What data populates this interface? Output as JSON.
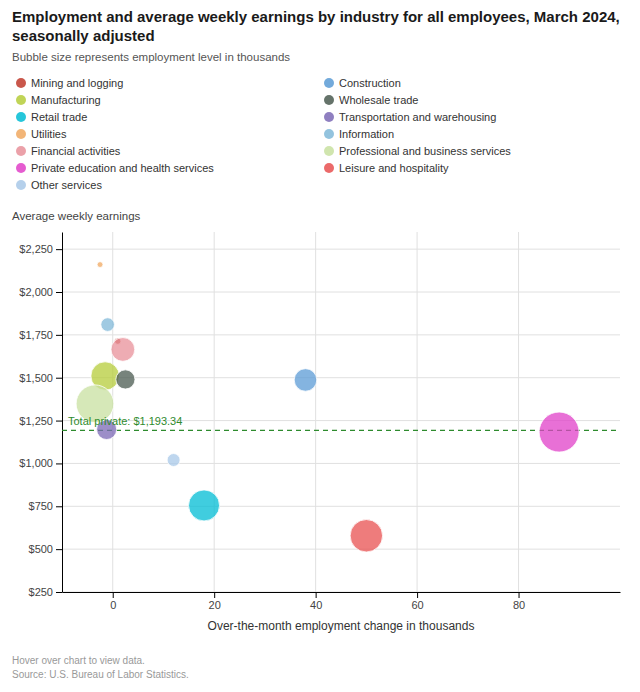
{
  "chart_data": {
    "type": "bubble",
    "title": "Employment and average weekly earnings by industry for all employees, March 2024, seasonally adjusted",
    "subtitle": "Bubble size represents employment level in thousands",
    "x_label": "Over-the-month employment change in thousands",
    "y_label": "Average weekly earnings",
    "xlim": [
      -10,
      100
    ],
    "ylim": [
      250,
      2350
    ],
    "xticks": [
      0,
      20,
      40,
      60,
      80
    ],
    "yticks": [
      {
        "value": 250,
        "label": "$250"
      },
      {
        "value": 500,
        "label": "$500"
      },
      {
        "value": 750,
        "label": "$750"
      },
      {
        "value": 1000,
        "label": "$1,000"
      },
      {
        "value": 1250,
        "label": "$1,250"
      },
      {
        "value": 1500,
        "label": "$1,500"
      },
      {
        "value": 1750,
        "label": "$1,750"
      },
      {
        "value": 2000,
        "label": "$2,000"
      },
      {
        "value": 2250,
        "label": "$2,250"
      }
    ],
    "grid": true,
    "annotations": [
      {
        "text": "Total private: $1,193.34",
        "y": 1193.34,
        "color": "#2e8b2e"
      }
    ],
    "source": [
      "Hover over chart to view data.",
      "Source: U.S. Bureau of Labor Statistics."
    ],
    "series": [
      {
        "name": "Mining and logging",
        "color": "#c0392b",
        "x": [
          1.0
        ],
        "values": [
          1713
        ],
        "sizes": [
          630
        ]
      },
      {
        "name": "Construction",
        "color": "#5b9bd5",
        "x": [
          38.0
        ],
        "values": [
          1487
        ],
        "sizes": [
          8200
        ]
      },
      {
        "name": "Manufacturing",
        "color": "#b5cc3a",
        "x": [
          -1.5
        ],
        "values": [
          1510
        ],
        "sizes": [
          13000
        ]
      },
      {
        "name": "Wholesale trade",
        "color": "#4a5a50",
        "x": [
          2.5
        ],
        "values": [
          1490
        ],
        "sizes": [
          5900
        ]
      },
      {
        "name": "Retail trade",
        "color": "#00bcd4",
        "x": [
          18.0
        ],
        "values": [
          755
        ],
        "sizes": [
          15500
        ]
      },
      {
        "name": "Transportation and warehousing",
        "color": "#7b68b5",
        "x": [
          -1.2
        ],
        "values": [
          1198
        ],
        "sizes": [
          6500
        ]
      },
      {
        "name": "Utilities",
        "color": "#f0a860",
        "x": [
          -2.5
        ],
        "values": [
          2160
        ],
        "sizes": [
          550
        ]
      },
      {
        "name": "Information",
        "color": "#80b8d8",
        "x": [
          -1.0
        ],
        "values": [
          1810
        ],
        "sizes": [
          3000
        ]
      },
      {
        "name": "Financial activities",
        "color": "#e8909a",
        "x": [
          2.0
        ],
        "values": [
          1665
        ],
        "sizes": [
          9100
        ]
      },
      {
        "name": "Professional and business services",
        "color": "#c8e0a0",
        "x": [
          -3.5
        ],
        "values": [
          1348
        ],
        "sizes": [
          22900
        ]
      },
      {
        "name": "Private education and health services",
        "color": "#e040c8",
        "x": [
          88.0
        ],
        "values": [
          1183
        ],
        "sizes": [
          25800
        ]
      },
      {
        "name": "Leisure and hospitality",
        "color": "#e85050",
        "x": [
          50.0
        ],
        "values": [
          578
        ],
        "sizes": [
          17000
        ]
      },
      {
        "name": "Other services",
        "color": "#a8c8e8",
        "x": [
          12.0
        ],
        "values": [
          1020
        ],
        "sizes": [
          2700
        ]
      }
    ]
  }
}
